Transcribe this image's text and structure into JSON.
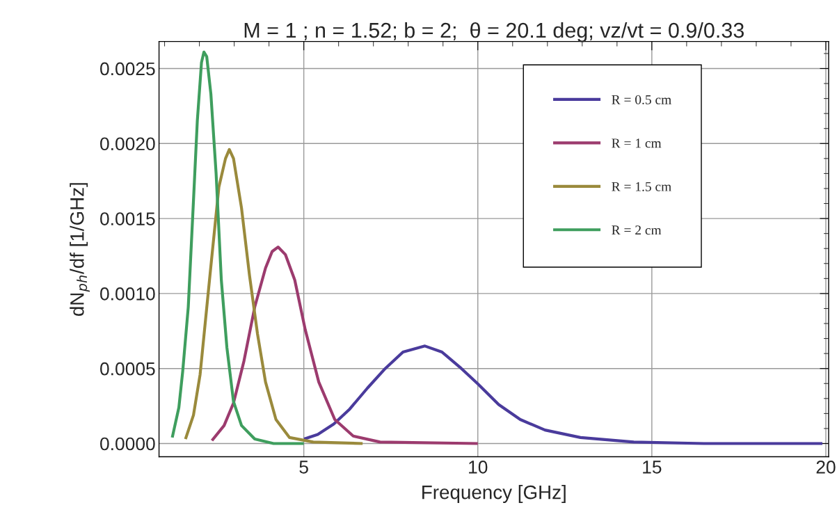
{
  "chart_data": {
    "type": "line",
    "title": "M = 1 ; n = 1.52; b = 2;  θ = 20.1 deg; vz/vt = 0.9/0.33",
    "xlabel": "Frequency [GHz]",
    "ylabel": "dN$_{ph}$/df [1/GHz]",
    "xlim": [
      0.84,
      20.08
    ],
    "ylim": [
      -8.8e-05,
      0.00268
    ],
    "xticks": [
      5,
      10,
      15,
      20
    ],
    "yticks": [
      {
        "value": 0,
        "label": "0.0000"
      },
      {
        "value": 0.0005,
        "label": "0.0005"
      },
      {
        "value": 0.001,
        "label": "0.0010"
      },
      {
        "value": 0.0015,
        "label": "0.0015"
      },
      {
        "value": 0.002,
        "label": "0.0020"
      },
      {
        "value": 0.0025,
        "label": "0.0025"
      }
    ],
    "grid": true,
    "legend": "top right",
    "line_style": "solid",
    "marker": "none",
    "series": [
      {
        "name": "R = 0.5 cm",
        "color": "#4a3b9c",
        "x": [
          5.01,
          5.4,
          5.86,
          6.32,
          6.83,
          7.34,
          7.85,
          8.48,
          8.97,
          9.48,
          9.99,
          10.6,
          11.22,
          11.93,
          12.95,
          14.48,
          16.5,
          19.9
        ],
        "values": [
          3e-05,
          6e-05,
          0.00013,
          0.00023,
          0.00037,
          0.0005,
          0.00061,
          0.00065,
          0.00061,
          0.00051,
          0.0004,
          0.00026,
          0.00016,
          9e-05,
          4e-05,
          1e-05,
          0,
          0
        ]
      },
      {
        "name": "R = 1 cm",
        "color": "#9c3b6e",
        "x": [
          2.36,
          2.71,
          2.98,
          3.28,
          3.59,
          3.9,
          4.09,
          4.26,
          4.47,
          4.74,
          5.04,
          5.43,
          5.89,
          6.42,
          7.19,
          10.0
        ],
        "values": [
          2e-05,
          0.00012,
          0.00027,
          0.00055,
          0.00091,
          0.00117,
          0.00128,
          0.00131,
          0.00126,
          0.00109,
          0.00076,
          0.00041,
          0.00016,
          5e-05,
          1e-05,
          0
        ]
      },
      {
        "name": "R = 1.5 cm",
        "color": "#9a8a3c",
        "x": [
          1.6,
          1.83,
          2.02,
          2.29,
          2.56,
          2.75,
          2.86,
          2.98,
          3.21,
          3.44,
          3.67,
          3.9,
          4.2,
          4.59,
          5.27,
          6.69
        ],
        "values": [
          3e-05,
          0.00019,
          0.00046,
          0.00109,
          0.00171,
          0.0019,
          0.00196,
          0.0019,
          0.00157,
          0.00112,
          0.00073,
          0.00041,
          0.00016,
          4e-05,
          1e-05,
          0
        ]
      },
      {
        "name": "R = 2 cm",
        "color": "#3f9e5e",
        "x": [
          1.22,
          1.41,
          1.52,
          1.68,
          1.83,
          1.94,
          2.06,
          2.13,
          2.21,
          2.33,
          2.48,
          2.63,
          2.79,
          2.98,
          3.21,
          3.59,
          4.13,
          5.0
        ],
        "values": [
          4e-05,
          0.00024,
          0.00048,
          0.00091,
          0.00162,
          0.00215,
          0.00254,
          0.00261,
          0.00258,
          0.00233,
          0.0018,
          0.00109,
          0.00064,
          0.00028,
          0.00012,
          3e-05,
          0,
          0
        ]
      }
    ]
  }
}
